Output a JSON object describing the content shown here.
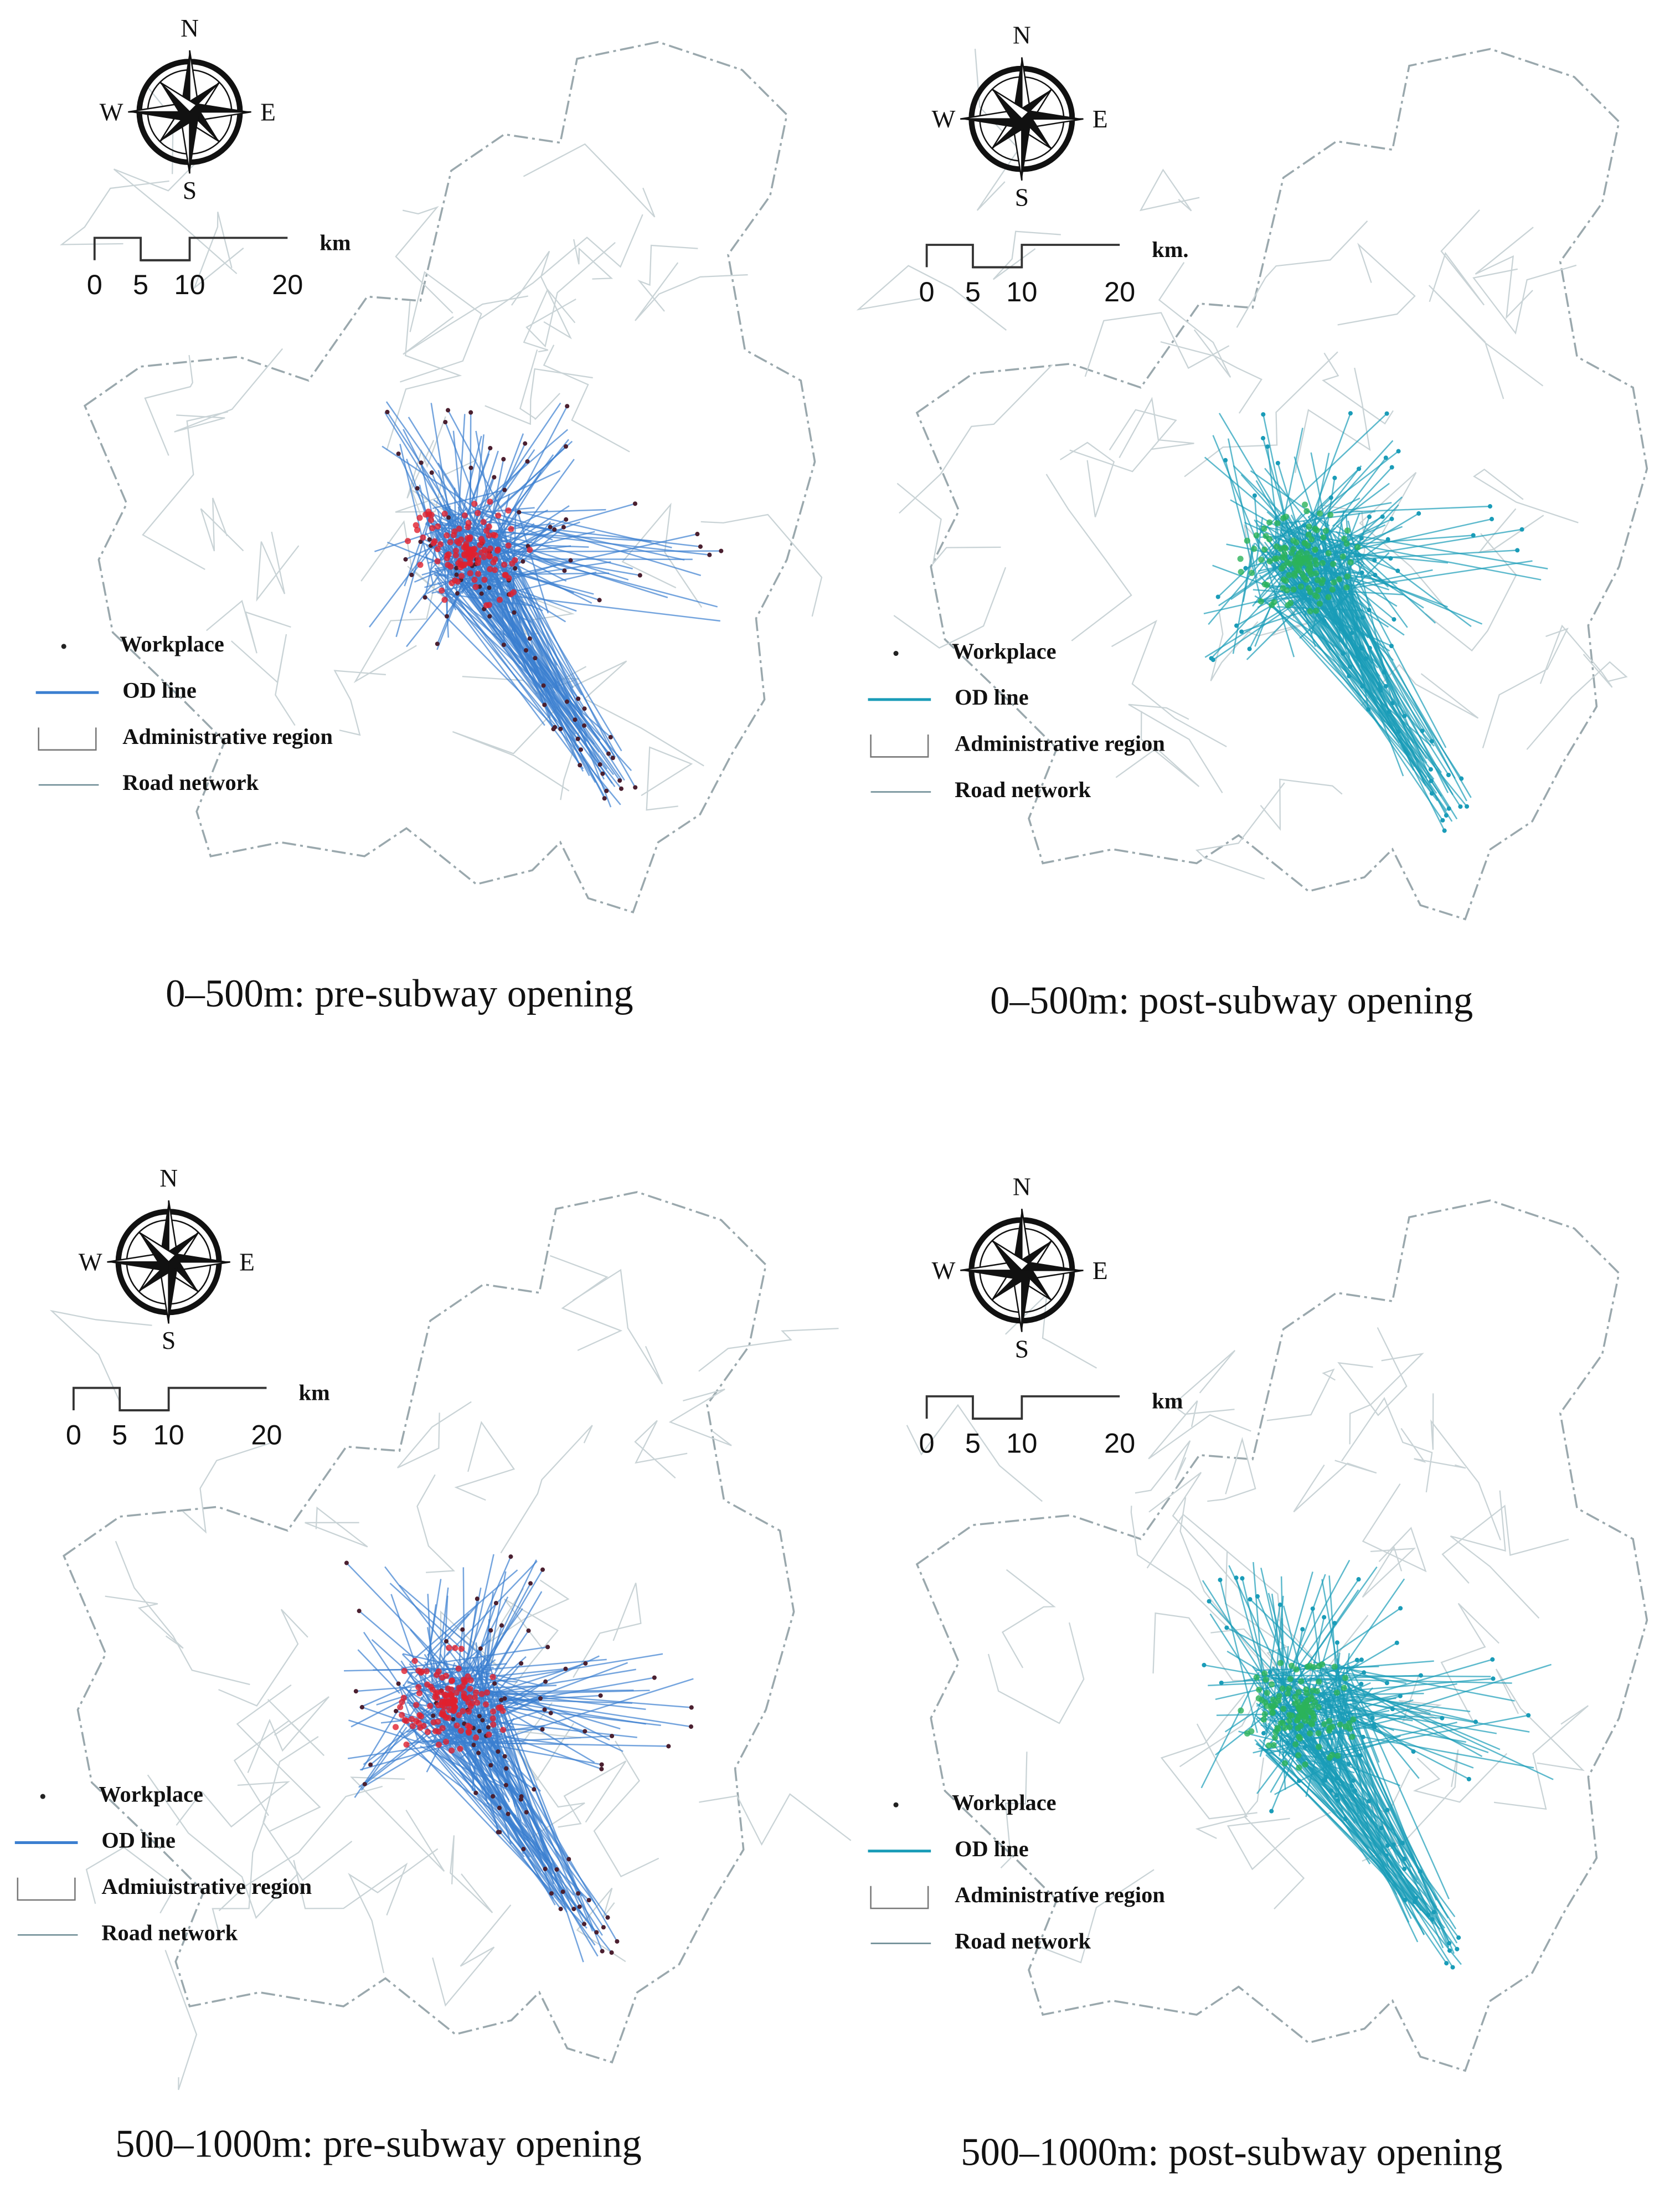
{
  "panels": [
    {
      "caption": "0–500m: pre-subway opening",
      "compass": {
        "north": "N",
        "south": "S",
        "west": "W",
        "east": "E"
      },
      "scale_bar": {
        "labels": [
          0,
          5,
          10,
          20
        ],
        "unit": "km"
      },
      "legend": [
        "Workplace",
        "OD line",
        "Administrative region",
        "Road network"
      ],
      "od_line_color": "#3b7fd0",
      "workplace_color": "#e0202e"
    },
    {
      "caption": "0–500m: post-subway opening",
      "compass": {
        "north": "N",
        "south": "S",
        "west": "W",
        "east": "E"
      },
      "scale_bar": {
        "labels": [
          0,
          5,
          10,
          20
        ],
        "unit": "km."
      },
      "legend": [
        "Workplace",
        "OD line",
        "Administrative region",
        "Road network"
      ],
      "od_line_color": "#1a9cb8",
      "workplace_color": "#2cb35a"
    },
    {
      "caption": "500–1000m: pre-subway opening",
      "compass": {
        "north": "N",
        "south": "S",
        "west": "W",
        "east": "E"
      },
      "scale_bar": {
        "labels": [
          0,
          5,
          10,
          20
        ],
        "unit": "km"
      },
      "legend": [
        "Workplace",
        "OD line",
        "Admiuistrative region",
        "Road network"
      ],
      "od_line_color": "#3b7fd0",
      "workplace_color": "#e0202e"
    },
    {
      "caption": "500–1000m: post-subway opening",
      "compass": {
        "north": "N",
        "south": "S",
        "west": "W",
        "east": "E"
      },
      "scale_bar": {
        "labels": [
          0,
          5,
          10,
          20
        ],
        "unit": "km"
      },
      "legend": [
        "Workplace",
        "OD line",
        "Administratíve region",
        "Road network"
      ],
      "od_line_color": "#1a9cb8",
      "workplace_color": "#2cb35a"
    }
  ]
}
